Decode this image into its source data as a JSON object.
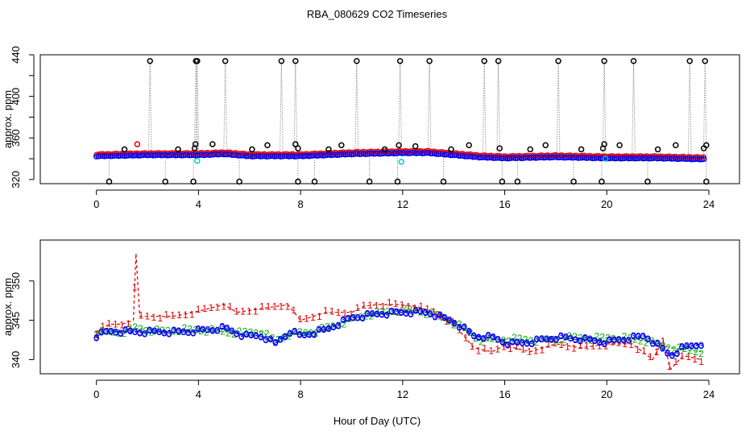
{
  "chart_data": [
    {
      "type": "scatter",
      "title": "RBA_080629  CO2 Timeseries",
      "xlabel": "",
      "ylabel": "approx. ppm",
      "xlim": [
        -2.2,
        25.2
      ],
      "ylim": [
        316,
        440
      ],
      "x_ticks": [
        0,
        4,
        8,
        12,
        16,
        20,
        24
      ],
      "x_tick_labels": [
        "0",
        "4",
        "8",
        "12",
        "16",
        "20",
        "24"
      ],
      "y_ticks": [
        320,
        360,
        400,
        440
      ],
      "y_tick_labels": [
        "320",
        "360",
        "400",
        "440"
      ],
      "y_minor_ticks": [
        340,
        380,
        420
      ],
      "colors": {
        "black": "#000000",
        "blue": "#0000ee",
        "red": "#e00000",
        "cyan": "#00cccc",
        "green": "#00aa00",
        "gray": "#9a9a9a"
      },
      "spike_times": [
        2.1,
        3.9,
        3.95,
        5.05,
        7.25,
        7.8,
        10.2,
        11.9,
        13.05,
        15.2,
        15.75,
        18.1,
        19.9,
        21.05,
        23.25,
        23.85
      ],
      "drop_times": [
        0.5,
        2.7,
        3.8,
        5.6,
        7.9,
        8.55,
        10.7,
        11.8,
        13.6,
        15.9,
        16.5,
        18.7,
        19.8,
        21.6,
        23.9
      ],
      "high_value": 434,
      "low_value": 318,
      "cyan_points": [
        {
          "x": 3.95,
          "y": 338
        },
        {
          "x": 11.95,
          "y": 337
        },
        {
          "x": 19.95,
          "y": 340
        }
      ],
      "outlier_points": [
        {
          "x": 1.1,
          "y": 349
        },
        {
          "x": 3.2,
          "y": 349
        },
        {
          "x": 3.85,
          "y": 350
        },
        {
          "x": 3.88,
          "y": 354
        },
        {
          "x": 4.55,
          "y": 354
        },
        {
          "x": 6.1,
          "y": 349
        },
        {
          "x": 6.7,
          "y": 353
        },
        {
          "x": 7.8,
          "y": 354
        },
        {
          "x": 7.9,
          "y": 350
        },
        {
          "x": 9.1,
          "y": 349
        },
        {
          "x": 9.6,
          "y": 353
        },
        {
          "x": 11.3,
          "y": 349
        },
        {
          "x": 11.85,
          "y": 353
        },
        {
          "x": 12.5,
          "y": 352
        },
        {
          "x": 13.9,
          "y": 349
        },
        {
          "x": 14.6,
          "y": 353
        },
        {
          "x": 15.8,
          "y": 350
        },
        {
          "x": 17.0,
          "y": 349
        },
        {
          "x": 17.6,
          "y": 353
        },
        {
          "x": 19.0,
          "y": 349
        },
        {
          "x": 19.85,
          "y": 350
        },
        {
          "x": 19.9,
          "y": 354
        },
        {
          "x": 20.5,
          "y": 353
        },
        {
          "x": 22.0,
          "y": 349
        },
        {
          "x": 22.7,
          "y": 353
        },
        {
          "x": 23.8,
          "y": 350
        },
        {
          "x": 23.9,
          "y": 353
        }
      ],
      "red_marker": {
        "x": 1.6,
        "y": 354
      },
      "series_baseline": [
        {
          "x": 0.0,
          "y": 343
        },
        {
          "x": 2.0,
          "y": 344
        },
        {
          "x": 4.0,
          "y": 344
        },
        {
          "x": 5.0,
          "y": 345
        },
        {
          "x": 6.0,
          "y": 343
        },
        {
          "x": 8.0,
          "y": 343
        },
        {
          "x": 10.0,
          "y": 345
        },
        {
          "x": 12.0,
          "y": 346
        },
        {
          "x": 13.0,
          "y": 346
        },
        {
          "x": 14.0,
          "y": 344
        },
        {
          "x": 15.0,
          "y": 342
        },
        {
          "x": 16.0,
          "y": 341
        },
        {
          "x": 18.0,
          "y": 342
        },
        {
          "x": 20.0,
          "y": 341
        },
        {
          "x": 22.0,
          "y": 341
        },
        {
          "x": 23.8,
          "y": 340
        }
      ]
    },
    {
      "type": "line",
      "title": "",
      "xlabel": "Hour of Day (UTC)",
      "ylabel": "approx. ppm",
      "xlim": [
        -2.2,
        25.2
      ],
      "ylim": [
        338.2,
        355.2
      ],
      "x_ticks": [
        0,
        4,
        8,
        12,
        16,
        20,
        24
      ],
      "x_tick_labels": [
        "0",
        "4",
        "8",
        "12",
        "16",
        "20",
        "24"
      ],
      "y_ticks": [
        340,
        345,
        350
      ],
      "y_tick_labels": [
        "340",
        "345",
        "350"
      ],
      "colors": {
        "s1": "#e00000",
        "s2": "#00aa00",
        "s3": "#0000ee",
        "circle": "#0000ee"
      },
      "series": [
        {
          "name": "1",
          "points": [
            {
              "x": 0.0,
              "y": 343.5
            },
            {
              "x": 0.5,
              "y": 344.5
            },
            {
              "x": 1.0,
              "y": 344.5
            },
            {
              "x": 1.45,
              "y": 345.0
            },
            {
              "x": 1.55,
              "y": 353.5
            },
            {
              "x": 1.7,
              "y": 345.5
            },
            {
              "x": 2.2,
              "y": 345.5
            },
            {
              "x": 3.0,
              "y": 345.5
            },
            {
              "x": 3.8,
              "y": 346.0
            },
            {
              "x": 4.4,
              "y": 346.5
            },
            {
              "x": 5.0,
              "y": 347.0
            },
            {
              "x": 5.5,
              "y": 346.0
            },
            {
              "x": 6.5,
              "y": 346.5
            },
            {
              "x": 7.5,
              "y": 347.0
            },
            {
              "x": 8.0,
              "y": 345.0
            },
            {
              "x": 9.0,
              "y": 346.0
            },
            {
              "x": 10.0,
              "y": 346.0
            },
            {
              "x": 10.5,
              "y": 346.8
            },
            {
              "x": 11.0,
              "y": 347.0
            },
            {
              "x": 11.8,
              "y": 347.0
            },
            {
              "x": 12.5,
              "y": 346.8
            },
            {
              "x": 13.3,
              "y": 346.0
            },
            {
              "x": 14.0,
              "y": 344.5
            },
            {
              "x": 14.8,
              "y": 341.5
            },
            {
              "x": 15.5,
              "y": 341.0
            },
            {
              "x": 16.0,
              "y": 341.8
            },
            {
              "x": 17.0,
              "y": 341.0
            },
            {
              "x": 18.0,
              "y": 342.0
            },
            {
              "x": 19.0,
              "y": 341.5
            },
            {
              "x": 20.0,
              "y": 342.0
            },
            {
              "x": 21.0,
              "y": 342.0
            },
            {
              "x": 21.8,
              "y": 340.0
            },
            {
              "x": 22.2,
              "y": 342.5
            },
            {
              "x": 22.5,
              "y": 338.8
            },
            {
              "x": 23.0,
              "y": 340.5
            },
            {
              "x": 23.7,
              "y": 340.0
            }
          ]
        },
        {
          "name": "2",
          "points": [
            {
              "x": 0.0,
              "y": 343.4
            },
            {
              "x": 1.0,
              "y": 343.5
            },
            {
              "x": 1.5,
              "y": 344.0
            },
            {
              "x": 2.5,
              "y": 343.6
            },
            {
              "x": 3.5,
              "y": 343.8
            },
            {
              "x": 4.5,
              "y": 343.7
            },
            {
              "x": 5.5,
              "y": 343.4
            },
            {
              "x": 6.5,
              "y": 343.5
            },
            {
              "x": 7.0,
              "y": 342.4
            },
            {
              "x": 7.6,
              "y": 343.3
            },
            {
              "x": 8.5,
              "y": 343.5
            },
            {
              "x": 9.5,
              "y": 344.5
            },
            {
              "x": 10.5,
              "y": 345.6
            },
            {
              "x": 11.5,
              "y": 346.2
            },
            {
              "x": 12.5,
              "y": 346.3
            },
            {
              "x": 13.5,
              "y": 345.5
            },
            {
              "x": 14.5,
              "y": 343.8
            },
            {
              "x": 15.0,
              "y": 342.5
            },
            {
              "x": 16.5,
              "y": 342.6
            },
            {
              "x": 17.5,
              "y": 342.4
            },
            {
              "x": 18.5,
              "y": 342.8
            },
            {
              "x": 19.5,
              "y": 342.7
            },
            {
              "x": 20.5,
              "y": 342.8
            },
            {
              "x": 21.5,
              "y": 342.4
            },
            {
              "x": 22.5,
              "y": 341.5
            },
            {
              "x": 23.7,
              "y": 341.0
            }
          ]
        },
        {
          "name": "3",
          "points": [
            {
              "x": 0.0,
              "y": 343.0
            },
            {
              "x": 0.5,
              "y": 343.6
            },
            {
              "x": 1.5,
              "y": 343.5
            },
            {
              "x": 2.5,
              "y": 343.5
            },
            {
              "x": 3.5,
              "y": 343.5
            },
            {
              "x": 4.5,
              "y": 343.8
            },
            {
              "x": 5.0,
              "y": 344.0
            },
            {
              "x": 5.8,
              "y": 343.0
            },
            {
              "x": 6.5,
              "y": 343.0
            },
            {
              "x": 7.0,
              "y": 342.0
            },
            {
              "x": 7.6,
              "y": 343.6
            },
            {
              "x": 8.0,
              "y": 343.0
            },
            {
              "x": 9.0,
              "y": 343.8
            },
            {
              "x": 10.0,
              "y": 345.3
            },
            {
              "x": 11.0,
              "y": 345.8
            },
            {
              "x": 12.0,
              "y": 346.0
            },
            {
              "x": 13.0,
              "y": 346.0
            },
            {
              "x": 14.0,
              "y": 344.8
            },
            {
              "x": 14.8,
              "y": 343.0
            },
            {
              "x": 15.5,
              "y": 342.8
            },
            {
              "x": 16.2,
              "y": 342.0
            },
            {
              "x": 17.0,
              "y": 342.2
            },
            {
              "x": 18.0,
              "y": 342.8
            },
            {
              "x": 19.0,
              "y": 342.6
            },
            {
              "x": 20.0,
              "y": 342.2
            },
            {
              "x": 20.5,
              "y": 342.5
            },
            {
              "x": 21.5,
              "y": 343.0
            },
            {
              "x": 22.0,
              "y": 341.8
            },
            {
              "x": 22.5,
              "y": 340.5
            },
            {
              "x": 23.0,
              "y": 341.5
            },
            {
              "x": 23.7,
              "y": 342.0
            }
          ]
        }
      ]
    }
  ]
}
